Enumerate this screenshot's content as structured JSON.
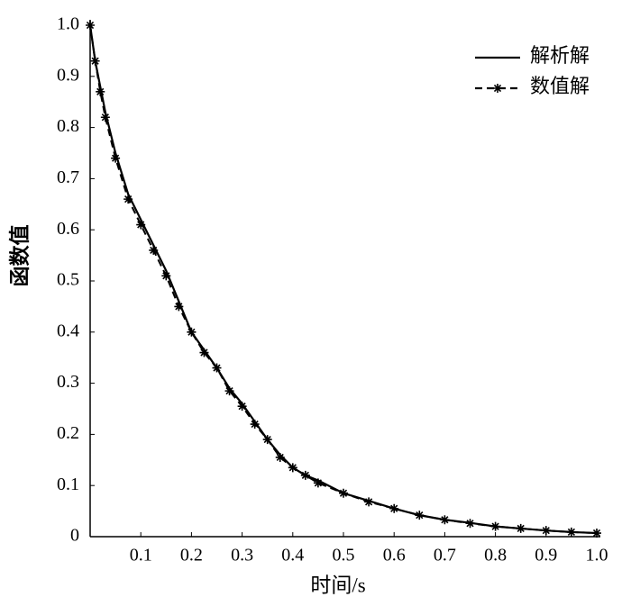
{
  "chart_data": {
    "type": "line",
    "x_label": "时间/s",
    "y_label": "函数值",
    "x": [
      0,
      0.01,
      0.02,
      0.03,
      0.05,
      0.075,
      0.1,
      0.125,
      0.15,
      0.175,
      0.2,
      0.225,
      0.25,
      0.275,
      0.3,
      0.325,
      0.35,
      0.375,
      0.4,
      0.425,
      0.45,
      0.5,
      0.55,
      0.6,
      0.65,
      0.7,
      0.75,
      0.8,
      0.85,
      0.9,
      0.95,
      1.0
    ],
    "series": [
      {
        "name": "解析解",
        "color": "#000000",
        "style": "solid",
        "values": [
          1.0,
          0.93,
          0.88,
          0.83,
          0.75,
          0.67,
          0.62,
          0.57,
          0.52,
          0.46,
          0.4,
          0.365,
          0.33,
          0.29,
          0.26,
          0.225,
          0.19,
          0.16,
          0.135,
          0.12,
          0.11,
          0.085,
          0.07,
          0.055,
          0.042,
          0.033,
          0.027,
          0.02,
          0.016,
          0.012,
          0.009,
          0.007
        ]
      },
      {
        "name": "数值解",
        "color": "#000000",
        "style": "dashed-asterisk",
        "values": [
          1.0,
          0.93,
          0.87,
          0.82,
          0.74,
          0.66,
          0.61,
          0.56,
          0.51,
          0.45,
          0.4,
          0.36,
          0.33,
          0.285,
          0.255,
          0.22,
          0.19,
          0.155,
          0.135,
          0.12,
          0.105,
          0.085,
          0.068,
          0.055,
          0.042,
          0.033,
          0.026,
          0.02,
          0.016,
          0.012,
          0.009,
          0.007
        ]
      }
    ],
    "xlim": [
      0,
      1.0
    ],
    "xticks": [
      0.1,
      0.2,
      0.3,
      0.4,
      0.5,
      0.6,
      0.7,
      0.8,
      0.9,
      {
        "value": 1.0,
        "label": "1.0"
      }
    ],
    "ylim": [
      0,
      1.0
    ],
    "yticks": [
      0,
      0.1,
      0.2,
      0.3,
      0.4,
      0.5,
      0.6,
      0.7,
      0.8,
      0.9,
      {
        "value": 1.0,
        "label": "1.0"
      }
    ],
    "grid": false,
    "legend": "top-right"
  }
}
